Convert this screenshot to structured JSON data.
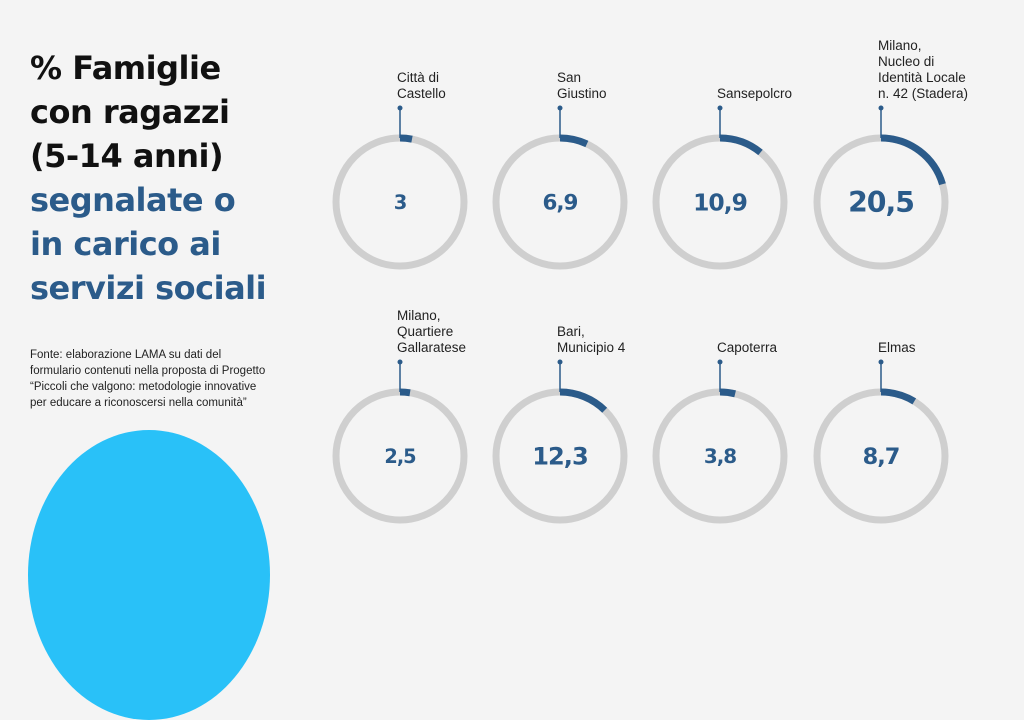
{
  "title": {
    "line1": "% Famiglie",
    "line2": "con ragazzi",
    "line3": "(5-14 anni)",
    "line4": "segnalate o",
    "line5": "in carico ai",
    "line6": "servizi sociali"
  },
  "source": "Fonte: elaborazione LAMA su dati del formulario contenuti nella proposta di Progetto “Piccoli che valgono: metodologie innovative per educare a riconoscersi nella comunità”",
  "colors": {
    "accent": "#2b5b8a",
    "ring_track": "#cfcfcf",
    "title_dark": "#111111",
    "blob": "#29c1f8",
    "background": "#f4f4f4"
  },
  "chart_data": {
    "type": "radial-gauge",
    "title": "% Famiglie con ragazzi (5-14 anni) segnalate o in carico ai servizi sociali",
    "unit": "%",
    "ylim": [
      0,
      100
    ],
    "categories": [
      "Città di Castello",
      "San Giustino",
      "Sansepolcro",
      "Milano, Nucleo di Identità Locale n. 42 (Stadera)",
      "Milano, Quartiere Gallaratese",
      "Bari, Municipio 4",
      "Capoterra",
      "Elmas"
    ],
    "label_lines": [
      [
        "Città di",
        "Castello"
      ],
      [
        "San",
        "Giustino"
      ],
      [
        "Sansepolcro"
      ],
      [
        "Milano,",
        "Nucleo di",
        "Identità Locale",
        "n. 42 (Stadera)"
      ],
      [
        "Milano,",
        "Quartiere",
        "Gallaratese"
      ],
      [
        "Bari,",
        "Municipio 4"
      ],
      [
        "Capoterra"
      ],
      [
        "Elmas"
      ]
    ],
    "values": [
      3,
      6.9,
      10.9,
      20.5,
      2.5,
      12.3,
      3.8,
      8.7
    ],
    "value_labels": [
      "3",
      "6,9",
      "10,9",
      "20,5",
      "2,5",
      "12,3",
      "3,8",
      "8,7"
    ]
  }
}
